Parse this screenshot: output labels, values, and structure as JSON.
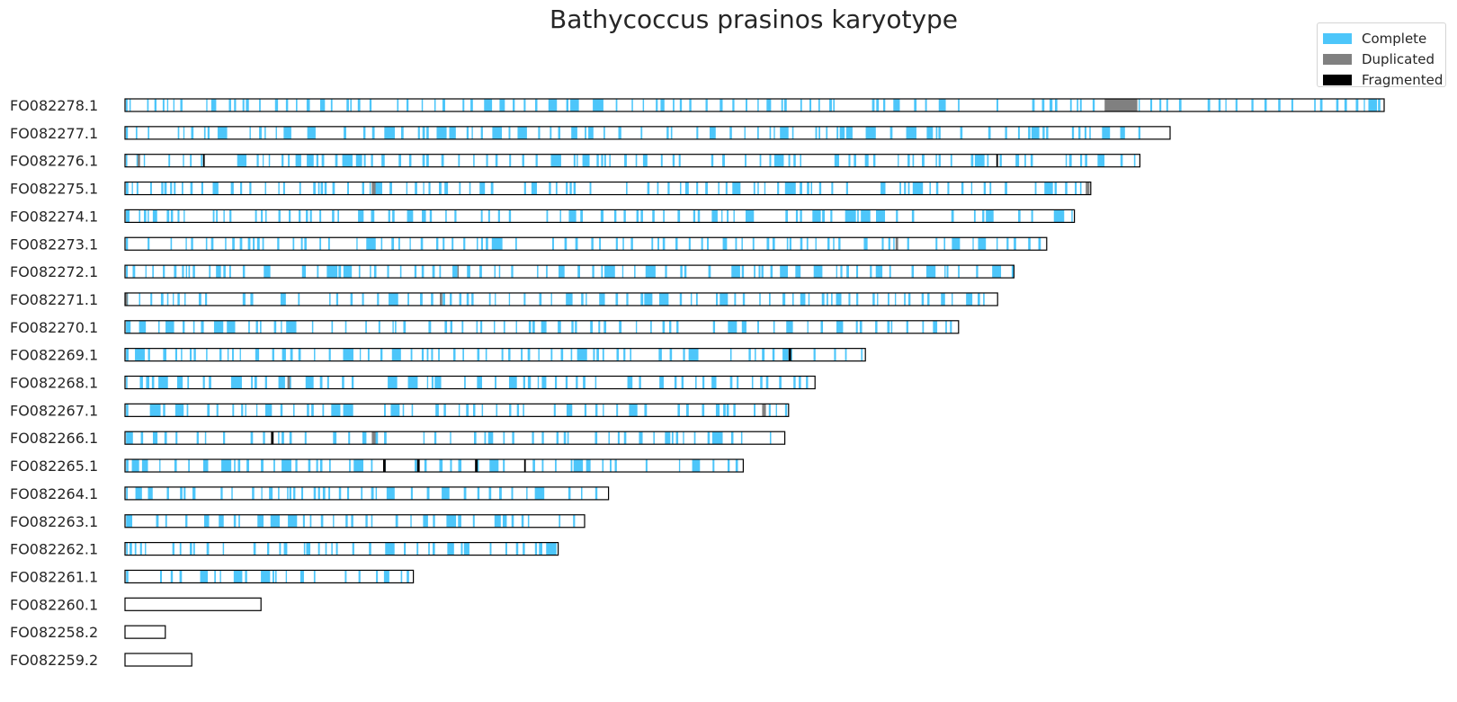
{
  "chart_data": {
    "type": "karyotype",
    "title": "Bathycoccus prasinos karyotype",
    "legend_position": "top-right",
    "colors": {
      "Complete": "#4DC6FA",
      "Duplicated": "#808080",
      "Fragmented": "#000000"
    },
    "legend": [
      "Complete",
      "Duplicated",
      "Fragmented"
    ],
    "chromosomes": [
      {
        "name": "FO082278.1",
        "length": 1000,
        "seed": 11,
        "duplicated": [
          [
            779,
            803
          ],
          [
            778,
            804
          ]
        ],
        "fragmented": []
      },
      {
        "name": "FO082277.1",
        "length": 830,
        "seed": 23,
        "duplicated": [],
        "fragmented": []
      },
      {
        "name": "FO082276.1",
        "length": 806,
        "seed": 37,
        "duplicated": [
          [
            10,
            12
          ]
        ],
        "fragmented": [
          [
            62,
            63
          ],
          [
            692,
            693
          ]
        ]
      },
      {
        "name": "FO082275.1",
        "length": 767,
        "seed": 41,
        "duplicated": [
          [
            196,
            199
          ],
          [
            763,
            766
          ]
        ],
        "fragmented": []
      },
      {
        "name": "FO082274.1",
        "length": 754,
        "seed": 53,
        "duplicated": [],
        "fragmented": []
      },
      {
        "name": "FO082273.1",
        "length": 732,
        "seed": 61,
        "duplicated": [
          [
            612,
            614
          ]
        ],
        "fragmented": []
      },
      {
        "name": "FO082272.1",
        "length": 706,
        "seed": 71,
        "duplicated": [
          [
            264,
            265
          ]
        ],
        "fragmented": []
      },
      {
        "name": "FO082271.1",
        "length": 693,
        "seed": 83,
        "duplicated": [
          [
            0,
            2
          ],
          [
            250,
            252
          ]
        ],
        "fragmented": []
      },
      {
        "name": "FO082270.1",
        "length": 662,
        "seed": 97,
        "duplicated": [],
        "fragmented": []
      },
      {
        "name": "FO082269.1",
        "length": 588,
        "seed": 101,
        "duplicated": [],
        "fragmented": [
          [
            527,
            529
          ]
        ]
      },
      {
        "name": "FO082268.1",
        "length": 548,
        "seed": 113,
        "duplicated": [
          [
            129,
            131
          ]
        ],
        "fragmented": []
      },
      {
        "name": "FO082267.1",
        "length": 527,
        "seed": 127,
        "duplicated": [
          [
            506,
            509
          ]
        ],
        "fragmented": []
      },
      {
        "name": "FO082266.1",
        "length": 524,
        "seed": 131,
        "duplicated": [
          [
            196,
            199
          ]
        ],
        "fragmented": [
          [
            116,
            118
          ]
        ]
      },
      {
        "name": "FO082265.1",
        "length": 491,
        "seed": 149,
        "duplicated": [],
        "fragmented": [
          [
            205,
            207
          ],
          [
            232,
            234
          ],
          [
            278,
            280
          ],
          [
            317,
            318
          ]
        ]
      },
      {
        "name": "FO082264.1",
        "length": 384,
        "seed": 157,
        "duplicated": [],
        "fragmented": []
      },
      {
        "name": "FO082263.1",
        "length": 365,
        "seed": 163,
        "duplicated": [],
        "fragmented": []
      },
      {
        "name": "FO082262.1",
        "length": 344,
        "seed": 173,
        "duplicated": [],
        "fragmented": []
      },
      {
        "name": "FO082261.1",
        "length": 229,
        "seed": 181,
        "duplicated": [],
        "fragmented": []
      },
      {
        "name": "FO082260.1",
        "length": 108,
        "seed": 0,
        "duplicated": [],
        "fragmented": []
      },
      {
        "name": "FO082258.2",
        "length": 32,
        "seed": 0,
        "duplicated": [],
        "fragmented": []
      },
      {
        "name": "FO082259.2",
        "length": 53,
        "seed": 0,
        "duplicated": [],
        "fragmented": []
      }
    ]
  }
}
